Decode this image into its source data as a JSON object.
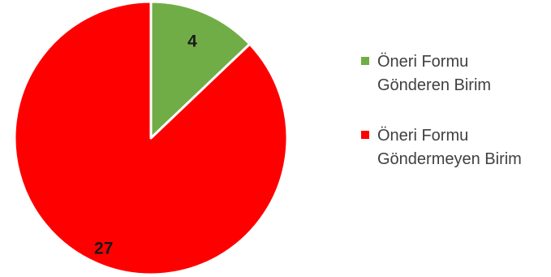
{
  "chart_data": {
    "type": "pie",
    "title": "",
    "slices": [
      {
        "label": "Öneri Formu\nGönderen Birim",
        "value": 4,
        "data_label": "4",
        "color": "#70ad47"
      },
      {
        "label": "Öneri Formu\nGöndermeyen Birim",
        "value": 27,
        "data_label": "27",
        "color": "#ff0000"
      }
    ],
    "start_angle_deg": 0,
    "direction": "clockwise",
    "slice_border_color": "#ffffff",
    "legend_position": "right"
  }
}
